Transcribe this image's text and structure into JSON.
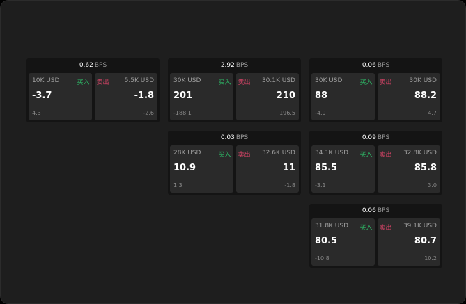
{
  "colors": {
    "buy": "#2db866",
    "sell": "#e0456a",
    "background": "#1e1e1e"
  },
  "labels": {
    "buy": "买入",
    "sell": "卖出",
    "unit": "BPS"
  },
  "widgets": [
    {
      "spread": "0.62",
      "buy": {
        "qty": "10K USD",
        "price": "-3.7",
        "change": "4.3"
      },
      "sell": {
        "qty": "5.5K USD",
        "price": "-1.8",
        "change": "-2.6"
      }
    },
    {
      "spread": "2.92",
      "buy": {
        "qty": "30K USD",
        "price": "201",
        "change": "-188.1"
      },
      "sell": {
        "qty": "30.1K USD",
        "price": "210",
        "change": "196.5"
      }
    },
    {
      "spread": "0.06",
      "buy": {
        "qty": "30K USD",
        "price": "88",
        "change": "-4.9"
      },
      "sell": {
        "qty": "30K USD",
        "price": "88.2",
        "change": "4.7"
      }
    },
    {
      "spread": "0.03",
      "buy": {
        "qty": "28K USD",
        "price": "10.9",
        "change": "1.3"
      },
      "sell": {
        "qty": "32.6K USD",
        "price": "11",
        "change": "-1.8"
      }
    },
    {
      "spread": "0.09",
      "buy": {
        "qty": "34.1K USD",
        "price": "85.5",
        "change": "-3.1"
      },
      "sell": {
        "qty": "32.8K USD",
        "price": "85.8",
        "change": "3.0"
      }
    },
    {
      "spread": "0.06",
      "buy": {
        "qty": "31.8K USD",
        "price": "80.5",
        "change": "-10.8"
      },
      "sell": {
        "qty": "39.1K USD",
        "price": "80.7",
        "change": "10.2"
      }
    }
  ]
}
